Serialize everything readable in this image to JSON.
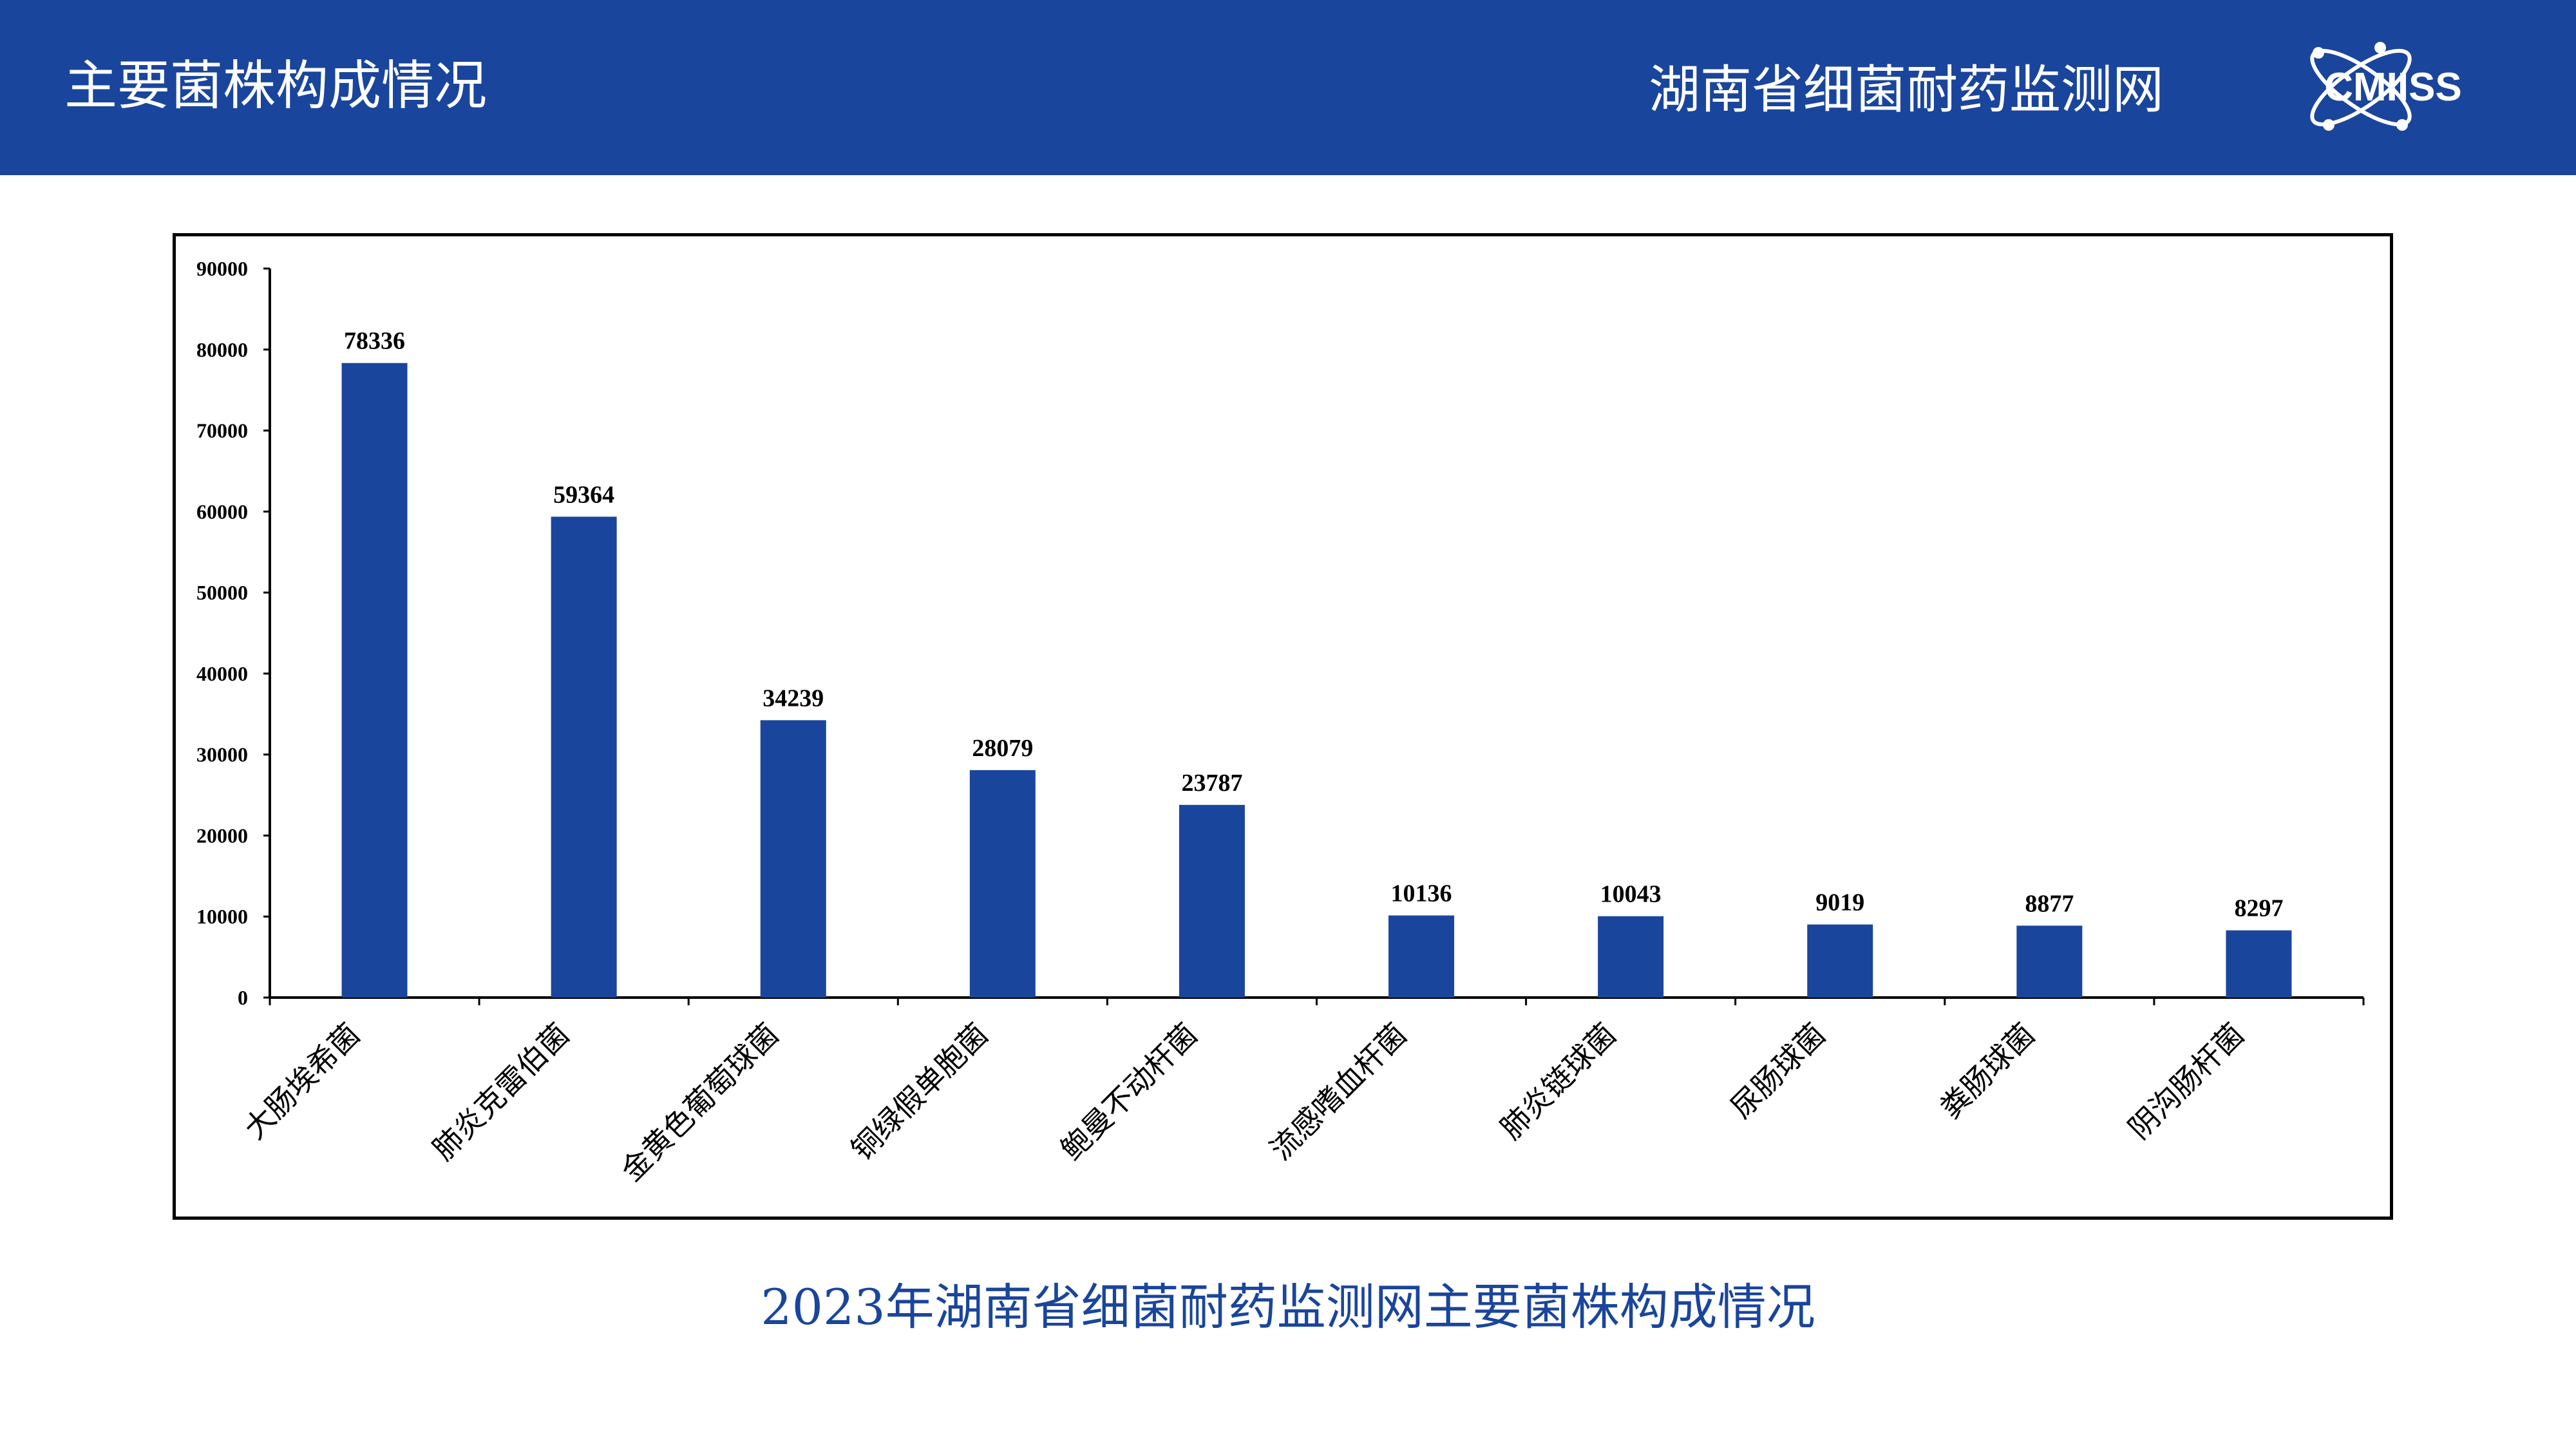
{
  "header": {
    "title": "主要菌株构成情况",
    "network": "湖南省细菌耐药监测网",
    "logo_text": "CMIISS"
  },
  "caption": "2023年湖南省细菌耐药监测网主要菌株构成情况",
  "colors": {
    "brand": "#1A459C",
    "bar": "#1A459C"
  },
  "chart_data": {
    "type": "bar",
    "title": "",
    "xlabel": "",
    "ylabel": "",
    "categories": [
      "大肠埃希菌",
      "肺炎克雷伯菌",
      "金黄色葡萄球菌",
      "铜绿假单胞菌",
      "鲍曼不动杆菌",
      "流感嗜血杆菌",
      "肺炎链球菌",
      "尿肠球菌",
      "粪肠球菌",
      "阴沟肠杆菌"
    ],
    "values": [
      78336,
      59364,
      34239,
      28079,
      23787,
      10136,
      10043,
      9019,
      8877,
      8297
    ],
    "ylim": [
      0,
      90000
    ],
    "yticks": [
      0,
      10000,
      20000,
      30000,
      40000,
      50000,
      60000,
      70000,
      80000,
      90000
    ],
    "data_labels": true,
    "grid": false,
    "legend": "none"
  }
}
